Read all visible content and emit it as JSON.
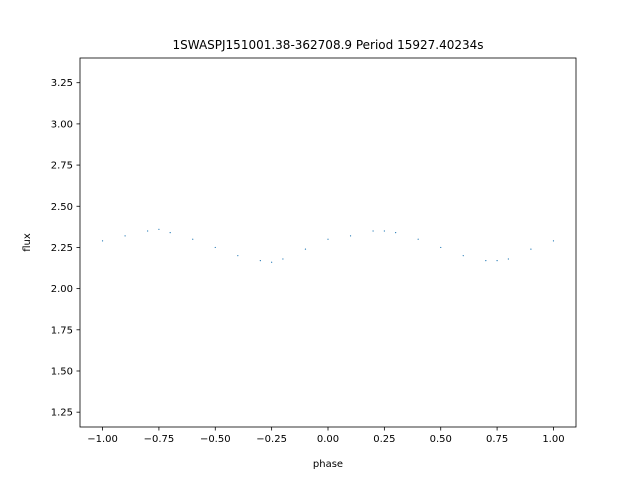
{
  "chart_data": {
    "type": "scatter",
    "title": "1SWASPJ151001.38-362708.9 Period 15927.40234s",
    "xlabel": "phase",
    "ylabel": "flux",
    "xlim": [
      -1.1,
      1.1
    ],
    "ylim": [
      1.16,
      3.4
    ],
    "xticks": [
      -1.0,
      -0.75,
      -0.5,
      -0.25,
      0.0,
      0.25,
      0.5,
      0.75,
      1.0
    ],
    "xtick_labels": [
      "−1.00",
      "−0.75",
      "−0.50",
      "−0.25",
      "0.00",
      "0.25",
      "0.50",
      "0.75",
      "1.00"
    ],
    "yticks": [
      1.25,
      1.5,
      1.75,
      2.0,
      2.25,
      2.5,
      2.75,
      3.0,
      3.25
    ],
    "ytick_labels": [
      "1.25",
      "1.50",
      "1.75",
      "2.00",
      "2.25",
      "2.50",
      "2.75",
      "3.00",
      "3.25"
    ],
    "grid": false,
    "marker_color": "#1f77b4",
    "series": [
      {
        "phase": [
          -1.0,
          -0.9,
          -0.8,
          -0.75,
          -0.7,
          -0.6,
          -0.5,
          -0.4,
          -0.3,
          -0.25,
          -0.2,
          -0.1,
          0.0,
          0.1,
          0.2,
          0.25,
          0.3,
          0.4,
          0.5,
          0.6,
          0.7,
          0.75,
          0.8,
          0.9,
          1.0
        ],
        "flux": [
          2.29,
          2.32,
          2.35,
          2.36,
          2.34,
          2.3,
          2.25,
          2.2,
          2.17,
          2.16,
          2.18,
          2.24,
          2.3,
          2.32,
          2.35,
          2.35,
          2.34,
          2.3,
          2.25,
          2.2,
          2.17,
          2.17,
          2.18,
          2.24,
          2.29
        ]
      }
    ]
  }
}
